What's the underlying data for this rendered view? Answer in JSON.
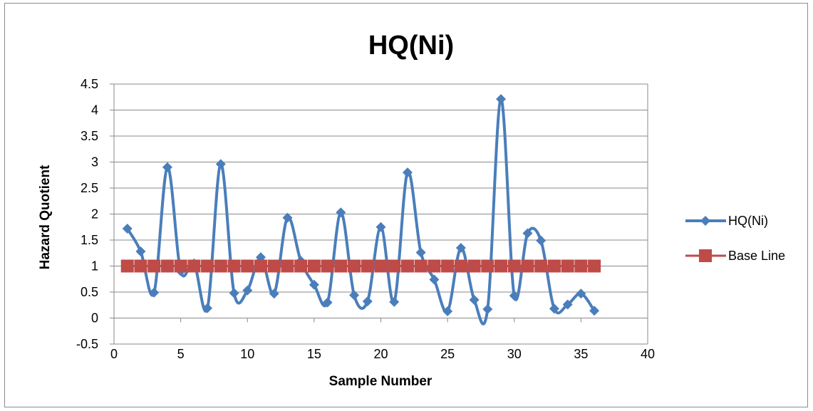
{
  "chart_data": {
    "type": "line",
    "title": "HQ(Ni)",
    "xlabel": "Sample Number",
    "ylabel": "Hazard Quotient",
    "xlim": [
      0,
      40
    ],
    "ylim": [
      -0.5,
      4.5
    ],
    "xticks": [
      "0",
      "5",
      "10",
      "15",
      "20",
      "25",
      "30",
      "35",
      "40"
    ],
    "yticks": [
      "-0.5",
      "0",
      "0.5",
      "1",
      "1.5",
      "2",
      "2.5",
      "3",
      "3.5",
      "4",
      "4.5"
    ],
    "grid": true,
    "legend_position": "right",
    "series": [
      {
        "name": "HQ(Ni)",
        "color": "#4a7ebb",
        "marker": "diamond",
        "smooth": true,
        "x": [
          1,
          2,
          3,
          4,
          5,
          6,
          7,
          8,
          9,
          10,
          11,
          12,
          13,
          14,
          15,
          16,
          17,
          18,
          19,
          20,
          21,
          22,
          23,
          24,
          25,
          26,
          27,
          28,
          29,
          30,
          31,
          32,
          33,
          34,
          35,
          36
        ],
        "values": [
          1.72,
          1.28,
          0.49,
          2.9,
          0.9,
          1.05,
          0.19,
          2.96,
          0.48,
          0.53,
          1.17,
          0.47,
          1.93,
          1.1,
          0.64,
          0.3,
          2.03,
          0.44,
          0.32,
          1.75,
          0.31,
          2.8,
          1.26,
          0.74,
          0.13,
          1.35,
          0.35,
          0.17,
          4.21,
          0.43,
          1.63,
          1.49,
          0.18,
          0.26,
          0.47,
          0.14
        ]
      },
      {
        "name": "Base Line",
        "color": "#be4b48",
        "marker": "square",
        "smooth": false,
        "x": [
          1,
          2,
          3,
          4,
          5,
          6,
          7,
          8,
          9,
          10,
          11,
          12,
          13,
          14,
          15,
          16,
          17,
          18,
          19,
          20,
          21,
          22,
          23,
          24,
          25,
          26,
          27,
          28,
          29,
          30,
          31,
          32,
          33,
          34,
          35,
          36
        ],
        "values": [
          1,
          1,
          1,
          1,
          1,
          1,
          1,
          1,
          1,
          1,
          1,
          1,
          1,
          1,
          1,
          1,
          1,
          1,
          1,
          1,
          1,
          1,
          1,
          1,
          1,
          1,
          1,
          1,
          1,
          1,
          1,
          1,
          1,
          1,
          1,
          1
        ]
      }
    ]
  }
}
